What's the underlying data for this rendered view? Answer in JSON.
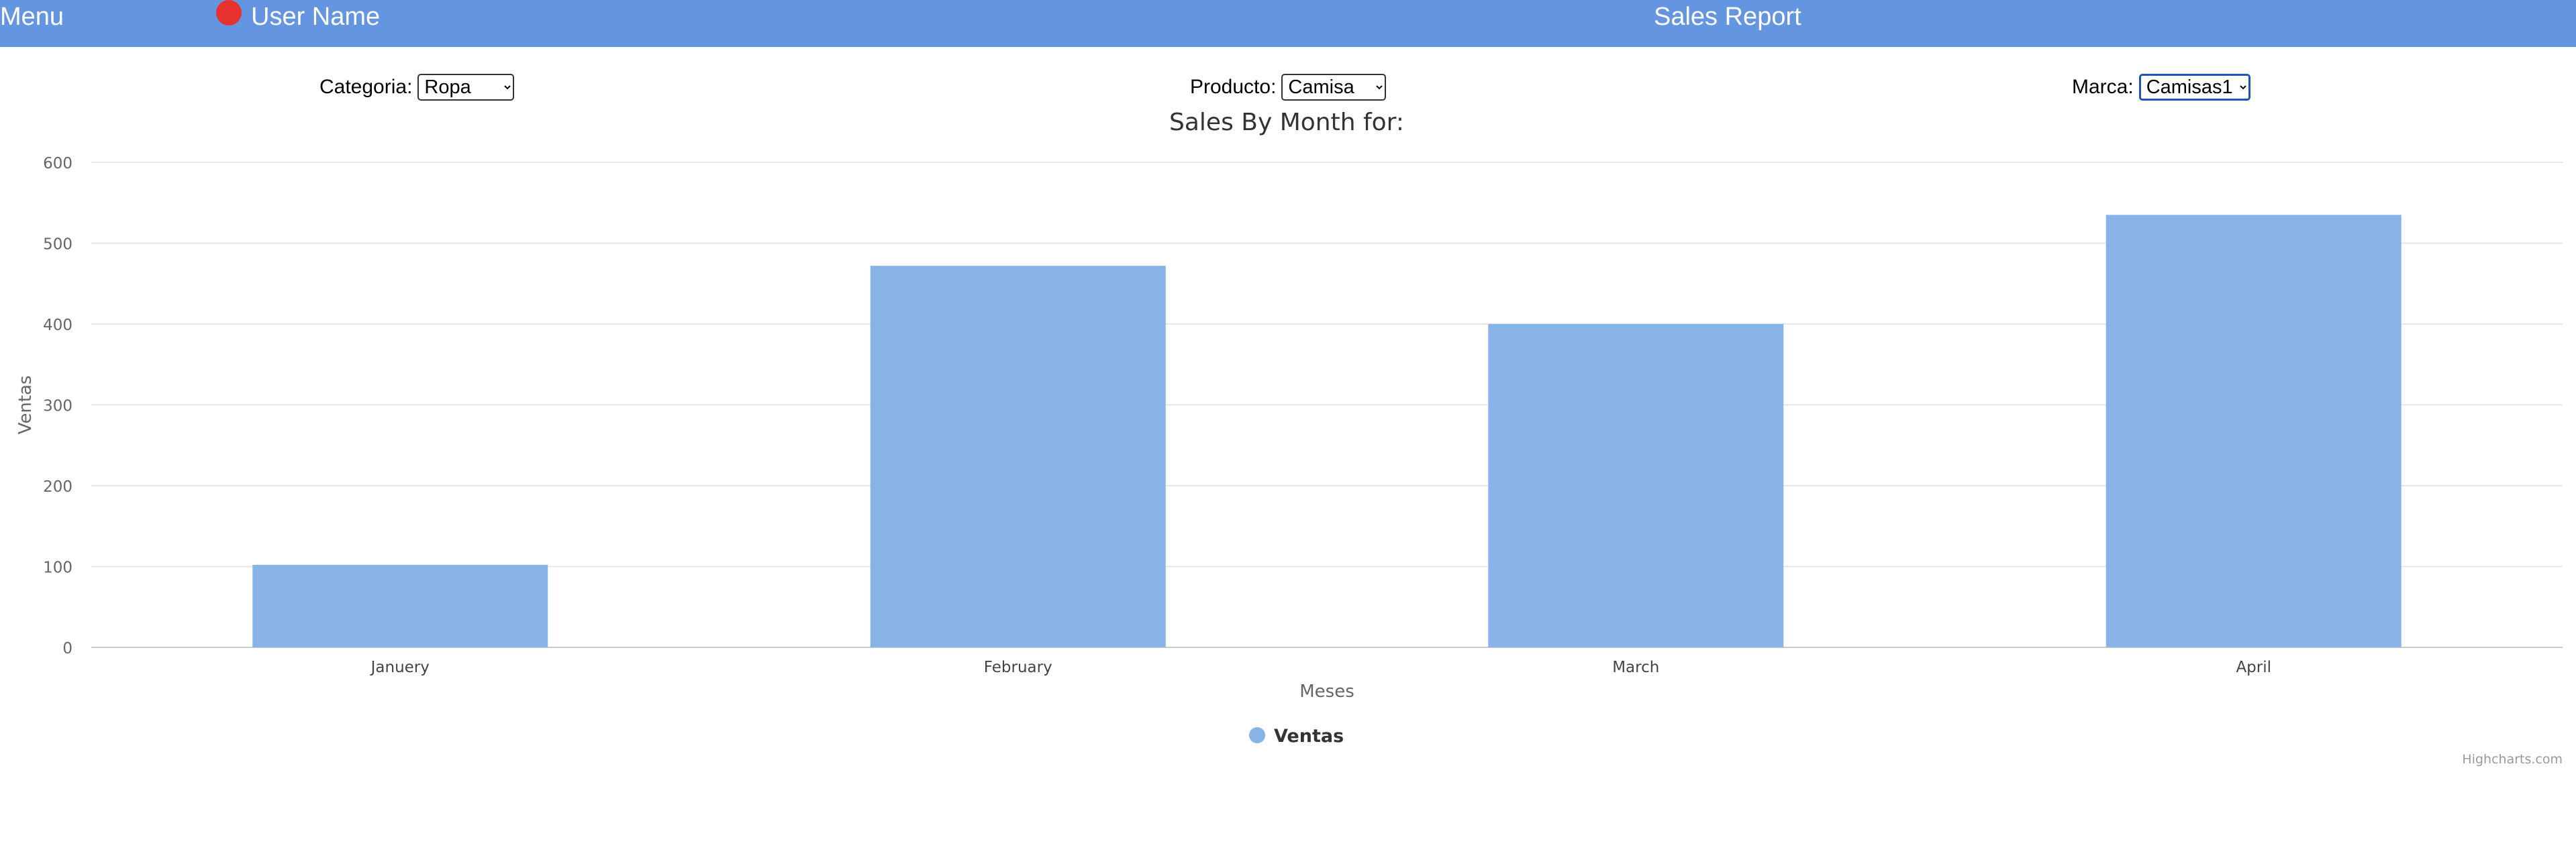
{
  "header": {
    "menu_label": "Menu",
    "user_name": "User Name",
    "app_title": "Sales Report",
    "avatar_color": "#e8322e",
    "bar_color": "#6495e1"
  },
  "filters": {
    "categoria": {
      "label": "Categoria:",
      "value": "Ropa"
    },
    "producto": {
      "label": "Producto:",
      "value": "Camisa"
    },
    "marca": {
      "label": "Marca:",
      "value": "Camisas1"
    }
  },
  "chart_data": {
    "type": "bar",
    "title": "Sales By Month for:",
    "categories": [
      "Januery",
      "February",
      "March",
      "April"
    ],
    "series": [
      {
        "name": "Ventas",
        "values": [
          102,
          472,
          400,
          535
        ],
        "color": "#87b3e6"
      }
    ],
    "xlabel": "Meses",
    "ylabel": "Ventas",
    "ylim": [
      0,
      600
    ],
    "yticks": [
      "0",
      "100",
      "200",
      "300",
      "400",
      "500",
      "600"
    ],
    "grid": true,
    "legend": "bottom-center",
    "credits": "Highcharts.com"
  }
}
